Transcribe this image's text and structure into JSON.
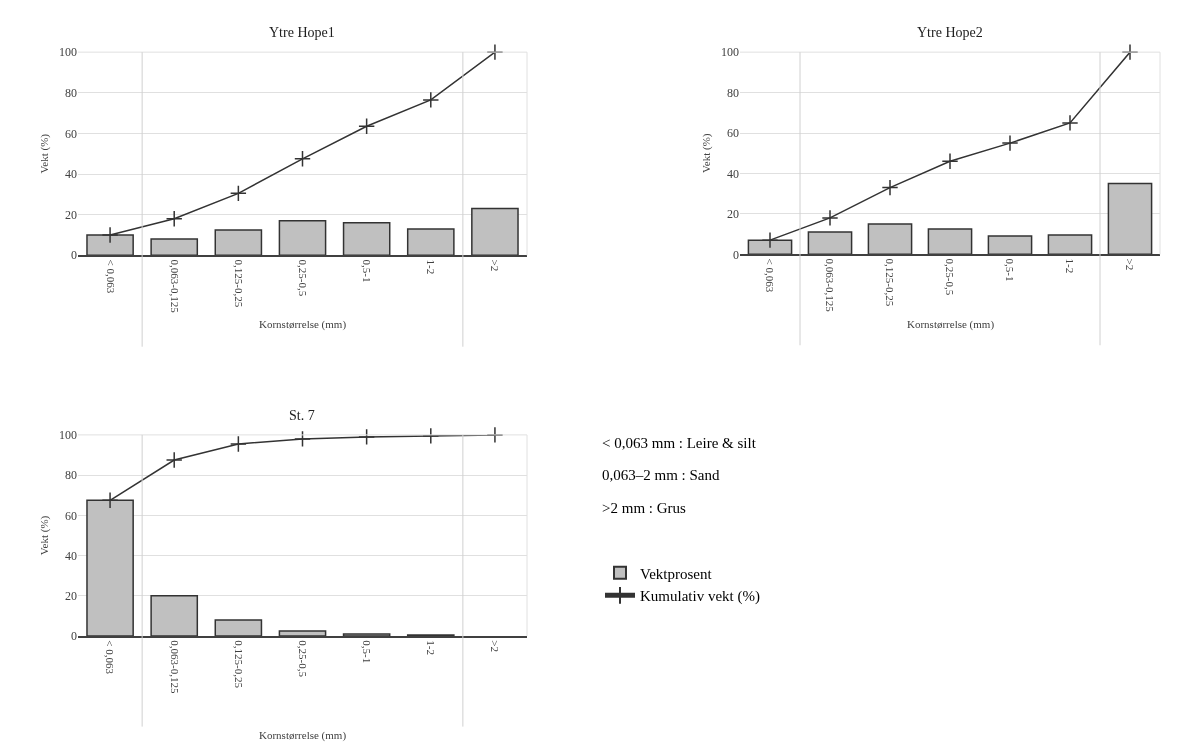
{
  "chart_data": [
    {
      "type": "bar",
      "title": "Ytre Hope1",
      "xlabel": "Kornstørrelse (mm)",
      "ylabel": "Vekt (%)",
      "categories": [
        "< 0,063",
        "0,063-0,125",
        "0,125-0,25",
        "0,25-0,5",
        "0,5-1",
        "1-2",
        ">2"
      ],
      "series": [
        {
          "name": "Vektprosent",
          "type": "bar",
          "color": "#c0c0c0",
          "values": [
            10,
            8,
            12.5,
            17,
            16,
            13,
            23
          ]
        },
        {
          "name": "Kumulativ vekt (%)",
          "type": "line",
          "color": "#333333",
          "values": [
            10,
            18,
            30.5,
            47.5,
            63.5,
            76.5,
            100
          ]
        }
      ],
      "ylim": [
        0,
        100
      ],
      "yticks": [
        0,
        20,
        40,
        60,
        80,
        100
      ],
      "grid": "y",
      "marker": "cross",
      "line_style": "solid",
      "legend": "bottom right"
    },
    {
      "type": "bar",
      "title": "Ytre Hope2",
      "xlabel": "Kornstørrelse (mm)",
      "ylabel": "Vekt (%)",
      "categories": [
        "< 0,063",
        "0,063-0,125",
        "0,125-0,25",
        "0,25-0,5",
        "0,5-1",
        "1-2",
        ">2"
      ],
      "series": [
        {
          "type": "bar",
          "color": "#c0c0c0",
          "values": [
            7,
            11,
            15,
            12.5,
            9,
            9.5,
            35
          ]
        },
        {
          "type": "line",
          "color": "#333333",
          "values": [
            7,
            18,
            33,
            46,
            55,
            65,
            100
          ]
        }
      ],
      "ylim": [
        0,
        100
      ],
      "yticks": [
        0,
        20,
        40,
        60,
        80,
        100
      ],
      "grid": "y",
      "marker": "cross",
      "line_style": "solid"
    },
    {
      "type": "bar",
      "title": "St. 7",
      "xlabel": "Kornstørrelse (mm)",
      "ylabel": "Vekt (%)",
      "categories": [
        "< 0,063",
        "0,063-0,125",
        "0,125-0,25",
        "0,25-0,5",
        "0,5-1",
        "1-2",
        ">2"
      ],
      "series": [
        {
          "type": "bar",
          "color": "#c0c0c0",
          "values": [
            67.5,
            20,
            8,
            2.5,
            1,
            0.5,
            0
          ]
        },
        {
          "type": "line",
          "color": "#333333",
          "values": [
            67.5,
            87.5,
            95.5,
            98,
            99,
            99.5,
            100
          ]
        }
      ],
      "ylim": [
        0,
        100
      ],
      "yticks": [
        0,
        20,
        40,
        60,
        80,
        100
      ],
      "grid": "y",
      "marker": "cross",
      "line_style": "solid"
    },
    {
      "type": "other",
      "annotations": [
        "< 0,063 mm : Leire & silt",
        "0,063–2 mm : Sand",
        ">2 mm : Grus"
      ]
    }
  ]
}
